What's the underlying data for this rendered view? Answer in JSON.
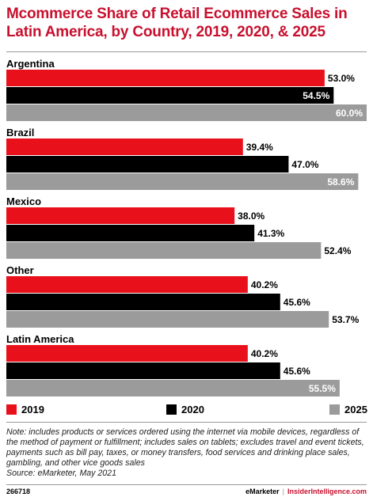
{
  "chart_data": {
    "type": "bar",
    "orientation": "horizontal",
    "title": "Mcommerce Share of Retail Ecommerce Sales in Latin America, by Country, 2019, 2020, & 2025",
    "categories": [
      "Argentina",
      "Brazil",
      "Mexico",
      "Other",
      "Latin America"
    ],
    "series": [
      {
        "name": "2019",
        "color": "#e8111b",
        "values": [
          53.0,
          39.4,
          38.0,
          40.2,
          40.2
        ],
        "labels": [
          "53.0%",
          "39.4%",
          "38.0%",
          "40.2%",
          "40.2%"
        ]
      },
      {
        "name": "2020",
        "color": "#000000",
        "values": [
          54.5,
          47.0,
          41.3,
          45.6,
          45.6
        ],
        "labels": [
          "54.5%",
          "47.0%",
          "41.3%",
          "45.6%",
          "45.6%"
        ]
      },
      {
        "name": "2025",
        "color": "#9b9b9b",
        "values": [
          60.0,
          58.6,
          52.4,
          53.7,
          55.5
        ],
        "labels": [
          "60.0%",
          "58.6%",
          "52.4%",
          "53.7%",
          "55.5%"
        ]
      }
    ],
    "xlim": [
      0,
      60
    ],
    "grid": false,
    "legend": "bottom"
  },
  "note": "Note: includes products or services ordered using the internet via mobile devices, regardless of the method of payment or fulfillment; includes sales on tablets; excludes travel and event tickets, payments such as bill pay, taxes, or money transfers, food services and drinking place sales, gambling, and other vice goods sales",
  "source": "Source: eMarketer, May 2021",
  "footer": {
    "id": "266718",
    "brand_left": "eMarketer",
    "separator": "|",
    "brand_right": "InsiderIntelligence.com"
  }
}
